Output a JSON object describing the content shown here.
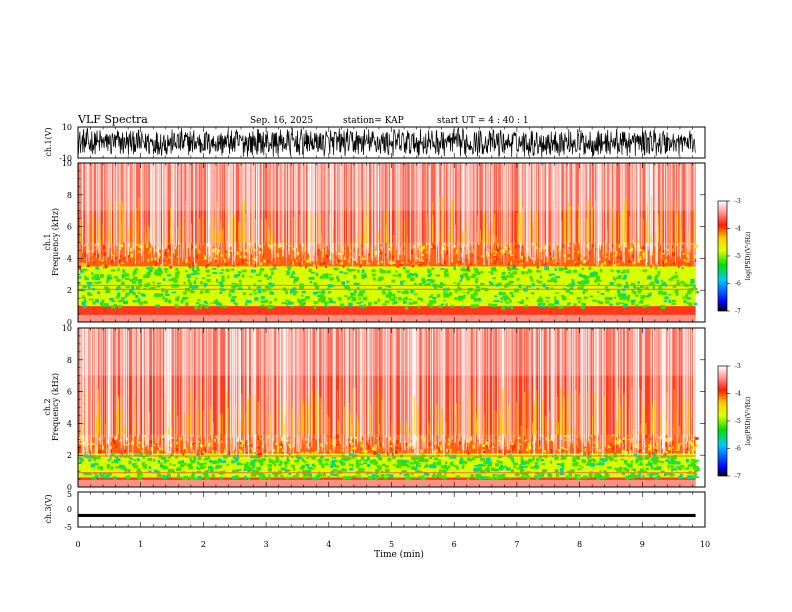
{
  "header": {
    "title": "VLF Spectra",
    "date": "Sep. 16, 2025",
    "station": "station= KAP",
    "start_ut": "start  UT =   4 : 40 : 1"
  },
  "chart_data": [
    {
      "type": "line",
      "panel": "ch1-waveform",
      "ylabel": "ch.1(V)",
      "ylim": [
        -10,
        10
      ],
      "yticks_labeled": [
        "10",
        "-10"
      ],
      "x_range_min": [
        0,
        9.85
      ],
      "description": "noisy waveform filling roughly -9 to 9 V"
    },
    {
      "type": "heatmap",
      "panel": "ch1-spectrogram",
      "ylabel_line1": "ch.1",
      "ylabel_line2": "Frequency (kHz)",
      "ylim_khz": [
        0,
        10
      ],
      "yticks": [
        "0",
        "2",
        "4",
        "6",
        "8",
        "10"
      ],
      "x_range_min": [
        0,
        9.85
      ],
      "features_khz": {
        "strong_band": [
          1,
          3.5
        ],
        "mid_band": [
          3.5,
          5
        ],
        "tone_lines": [
          2.05,
          2.3,
          0.3
        ]
      }
    },
    {
      "type": "heatmap",
      "panel": "ch2-spectrogram",
      "ylabel_line1": "ch.2",
      "ylabel_line2": "Frequency (kHz)",
      "ylim_khz": [
        0,
        10
      ],
      "yticks": [
        "0",
        "2",
        "4",
        "6",
        "8",
        "10"
      ],
      "x_range_min": [
        0,
        9.85
      ],
      "features_khz": {
        "strong_band": [
          0.6,
          2.1
        ],
        "mid_band": [
          2.1,
          3.3
        ],
        "tone_lines": [
          1.95,
          0.9,
          0.3
        ]
      }
    },
    {
      "type": "line",
      "panel": "ch3-waveform",
      "ylabel": "ch.3(V)",
      "ylim": [
        -5,
        5
      ],
      "yticks": [
        "5",
        "0",
        "-5"
      ],
      "band_volts": [
        -2.2,
        -1.3
      ],
      "x_range_min": [
        0,
        9.85
      ]
    }
  ],
  "xaxis": {
    "label": "Time  (min)",
    "range": [
      0,
      10
    ],
    "ticks": [
      "0",
      "1",
      "2",
      "3",
      "4",
      "5",
      "6",
      "7",
      "8",
      "9",
      "10"
    ]
  },
  "colorbar": {
    "label": "log(PSD)(V²/Hz)",
    "range": [
      -7,
      -3
    ],
    "ticks": [
      "-3",
      "-4",
      "-5",
      "-6",
      "-7"
    ],
    "colors": [
      "#000000",
      "#0000ff",
      "#00c8ff",
      "#00e000",
      "#e0ff00",
      "#ffd000",
      "#ff2000",
      "#ffffff"
    ]
  }
}
